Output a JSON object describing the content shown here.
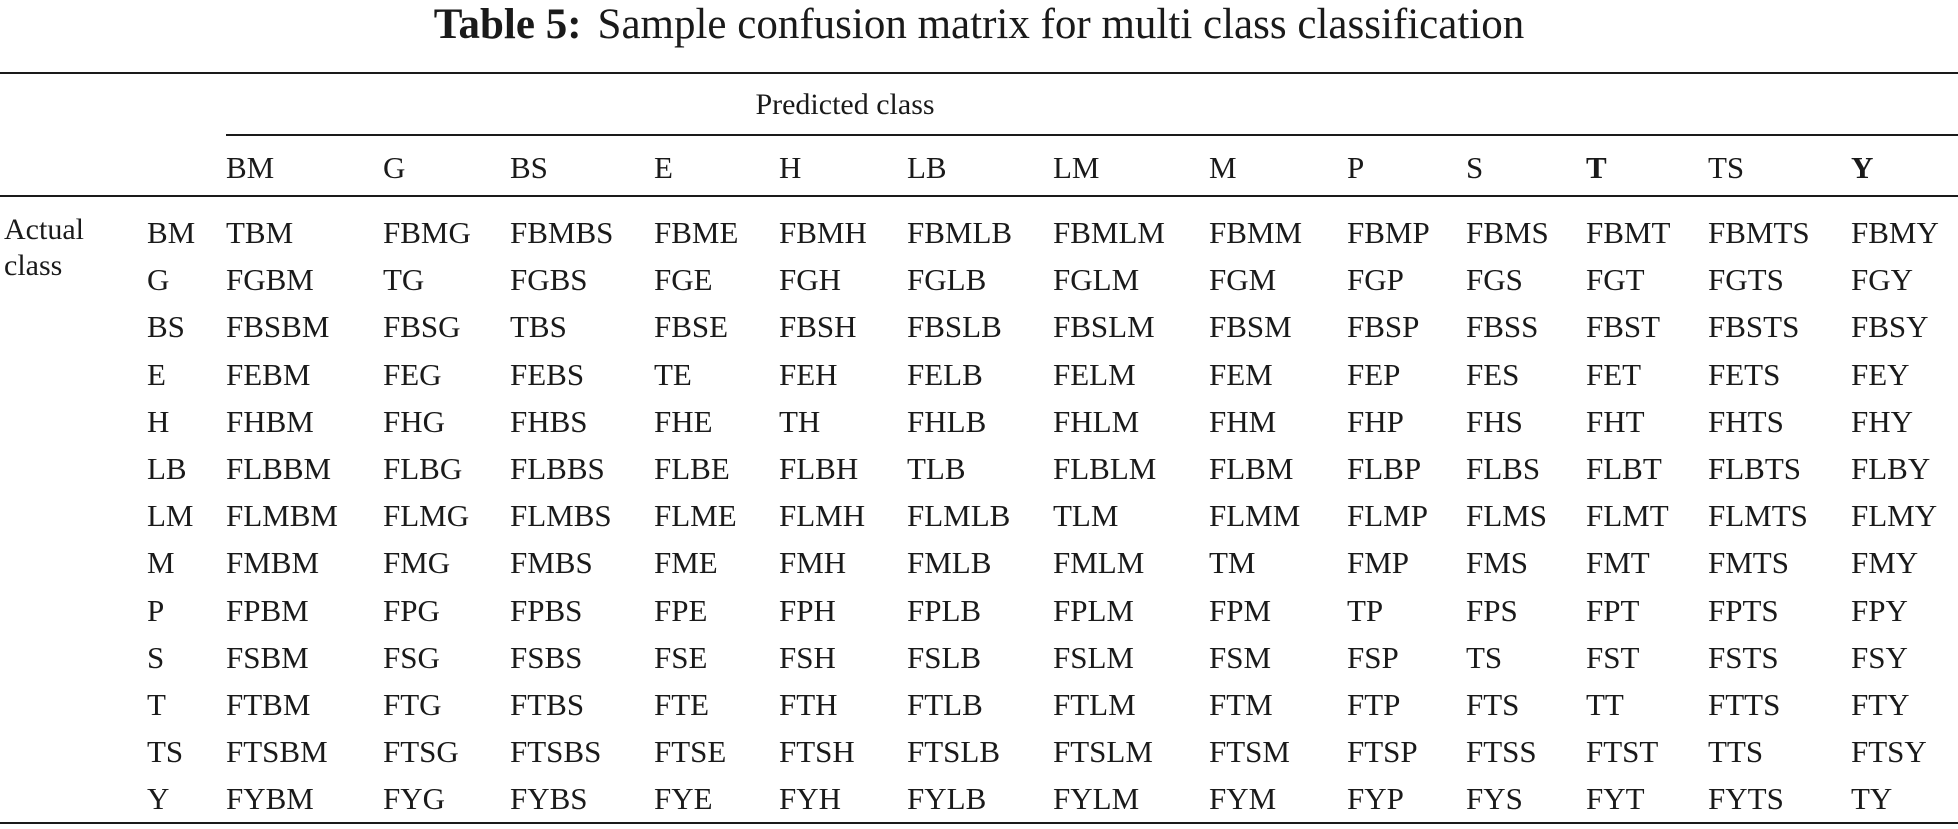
{
  "caption": {
    "label": "Table 5:",
    "text": "Sample confusion matrix for multi class classification"
  },
  "predicted_label": "Predicted class",
  "actual_label_line1": "Actual",
  "actual_label_line2": "class",
  "columns": [
    {
      "label": "BM",
      "bold": false
    },
    {
      "label": "G",
      "bold": false
    },
    {
      "label": "BS",
      "bold": false
    },
    {
      "label": "E",
      "bold": false
    },
    {
      "label": "H",
      "bold": false
    },
    {
      "label": "LB",
      "bold": false
    },
    {
      "label": "LM",
      "bold": false
    },
    {
      "label": "M",
      "bold": false
    },
    {
      "label": "P",
      "bold": false
    },
    {
      "label": "S",
      "bold": false
    },
    {
      "label": "T",
      "bold": true
    },
    {
      "label": "TS",
      "bold": false
    },
    {
      "label": "Y",
      "bold": true
    }
  ],
  "rows": [
    {
      "label": "BM",
      "cells": [
        "TBM",
        "FBMG",
        "FBMBS",
        "FBME",
        "FBMH",
        "FBMLB",
        "FBMLM",
        "FBMM",
        "FBMP",
        "FBMS",
        "FBMT",
        "FBMTS",
        "FBMY"
      ]
    },
    {
      "label": "G",
      "cells": [
        "FGBM",
        "TG",
        "FGBS",
        "FGE",
        "FGH",
        "FGLB",
        "FGLM",
        "FGM",
        "FGP",
        "FGS",
        "FGT",
        "FGTS",
        "FGY"
      ]
    },
    {
      "label": "BS",
      "cells": [
        "FBSBM",
        "FBSG",
        "TBS",
        "FBSE",
        "FBSH",
        "FBSLB",
        "FBSLM",
        "FBSM",
        "FBSP",
        "FBSS",
        "FBST",
        "FBSTS",
        "FBSY"
      ]
    },
    {
      "label": "E",
      "cells": [
        "FEBM",
        "FEG",
        "FEBS",
        "TE",
        "FEH",
        "FELB",
        "FELM",
        "FEM",
        "FEP",
        "FES",
        "FET",
        "FETS",
        "FEY"
      ]
    },
    {
      "label": "H",
      "cells": [
        "FHBM",
        "FHG",
        "FHBS",
        "FHE",
        "TH",
        "FHLB",
        "FHLM",
        "FHM",
        "FHP",
        "FHS",
        "FHT",
        "FHTS",
        "FHY"
      ]
    },
    {
      "label": "LB",
      "cells": [
        "FLBBM",
        "FLBG",
        "FLBBS",
        "FLBE",
        "FLBH",
        "TLB",
        "FLBLM",
        "FLBM",
        "FLBP",
        "FLBS",
        "FLBT",
        "FLBTS",
        "FLBY"
      ]
    },
    {
      "label": "LM",
      "cells": [
        "FLMBM",
        "FLMG",
        "FLMBS",
        "FLME",
        "FLMH",
        "FLMLB",
        "TLM",
        "FLMM",
        "FLMP",
        "FLMS",
        "FLMT",
        "FLMTS",
        "FLMY"
      ]
    },
    {
      "label": "M",
      "cells": [
        "FMBM",
        "FMG",
        "FMBS",
        "FME",
        "FMH",
        "FMLB",
        "FMLM",
        "TM",
        "FMP",
        "FMS",
        "FMT",
        "FMTS",
        "FMY"
      ]
    },
    {
      "label": "P",
      "cells": [
        "FPBM",
        "FPG",
        "FPBS",
        "FPE",
        "FPH",
        "FPLB",
        "FPLM",
        "FPM",
        "TP",
        "FPS",
        "FPT",
        "FPTS",
        "FPY"
      ]
    },
    {
      "label": "S",
      "cells": [
        "FSBM",
        "FSG",
        "FSBS",
        "FSE",
        "FSH",
        "FSLB",
        "FSLM",
        "FSM",
        "FSP",
        "TS",
        "FST",
        "FSTS",
        "FSY"
      ]
    },
    {
      "label": "T",
      "cells": [
        "FTBM",
        "FTG",
        "FTBS",
        "FTE",
        "FTH",
        "FTLB",
        "FTLM",
        "FTM",
        "FTP",
        "FTS",
        "TT",
        "FTTS",
        "FTY"
      ]
    },
    {
      "label": "TS",
      "cells": [
        "FTSBM",
        "FTSG",
        "FTSBS",
        "FTSE",
        "FTSH",
        "FTSLB",
        "FTSLM",
        "FTSM",
        "FTSP",
        "FTSS",
        "FTST",
        "TTS",
        "FTSY"
      ]
    },
    {
      "label": "Y",
      "cells": [
        "FYBM",
        "FYG",
        "FYBS",
        "FYE",
        "FYH",
        "FYLB",
        "FYLM",
        "FYM",
        "FYP",
        "FYS",
        "FYT",
        "FYTS",
        "TY"
      ]
    }
  ]
}
